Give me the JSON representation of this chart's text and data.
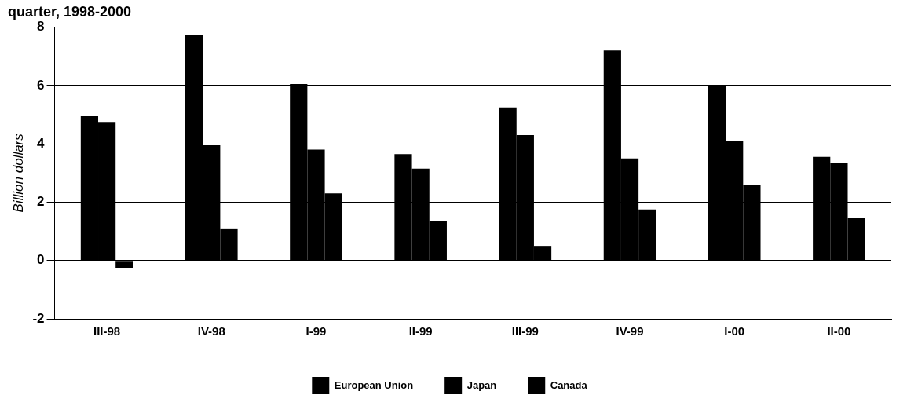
{
  "chart_data": {
    "type": "bar",
    "title": "quarter, 1998-2000",
    "ylabel": "Billion dollars",
    "categories": [
      "III-98",
      "IV-98",
      "I-99",
      "II-99",
      "III-99",
      "IV-99",
      "I-00",
      "II-00"
    ],
    "series": [
      {
        "name": "European Union",
        "color": "#000000",
        "values": [
          4.95,
          7.75,
          6.05,
          3.65,
          5.25,
          7.2,
          6.0,
          3.55
        ]
      },
      {
        "name": "Japan",
        "color": "#000000",
        "values": [
          4.75,
          3.95,
          3.8,
          3.15,
          4.3,
          3.5,
          4.1,
          3.35
        ]
      },
      {
        "name": "Canada",
        "color": "#000000",
        "values": [
          -0.25,
          1.1,
          2.3,
          1.35,
          0.5,
          1.75,
          2.6,
          1.45
        ]
      }
    ],
    "ylim": [
      -2,
      8
    ],
    "yticks": [
      -2,
      0,
      2,
      4,
      6,
      8
    ],
    "grid": "y",
    "legend": "bottom"
  }
}
